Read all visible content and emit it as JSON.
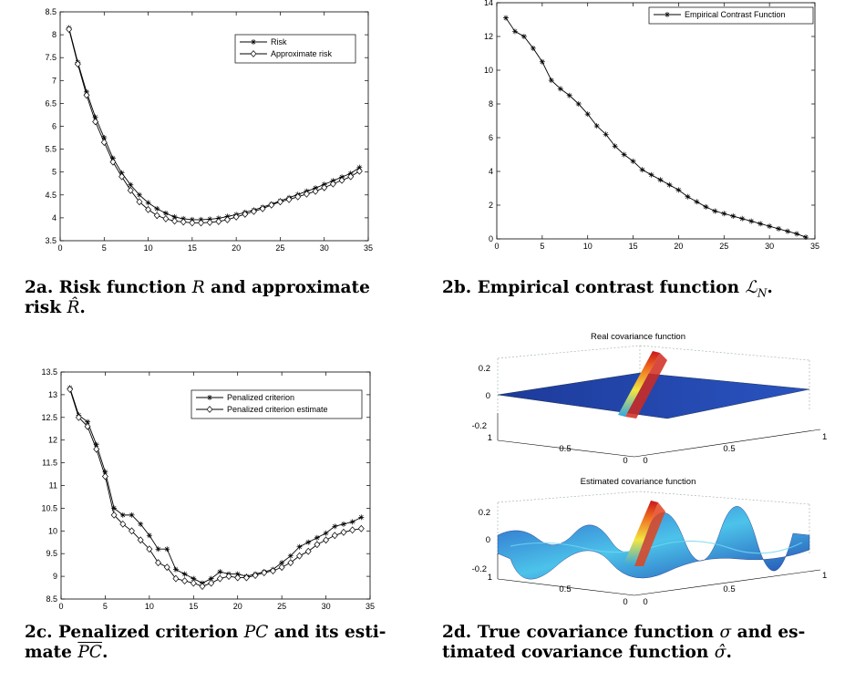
{
  "chart_data": [
    {
      "type": "line",
      "x": [
        1,
        2,
        3,
        4,
        5,
        6,
        7,
        8,
        9,
        10,
        11,
        12,
        13,
        14,
        15,
        16,
        17,
        18,
        19,
        20,
        21,
        22,
        23,
        24,
        25,
        26,
        27,
        28,
        29,
        30,
        31,
        32,
        33,
        34
      ],
      "series": [
        {
          "name": "Risk",
          "marker": "star",
          "values": [
            8.15,
            7.4,
            6.75,
            6.2,
            5.75,
            5.3,
            4.98,
            4.72,
            4.5,
            4.33,
            4.2,
            4.1,
            4.02,
            3.98,
            3.96,
            3.96,
            3.97,
            3.99,
            4.03,
            4.07,
            4.12,
            4.17,
            4.23,
            4.3,
            4.37,
            4.44,
            4.51,
            4.58,
            4.65,
            4.73,
            4.81,
            4.89,
            4.97,
            5.1
          ]
        },
        {
          "name": "Approximate risk",
          "marker": "diamond",
          "values": [
            8.12,
            7.36,
            6.68,
            6.1,
            5.65,
            5.22,
            4.9,
            4.6,
            4.35,
            4.18,
            4.05,
            3.98,
            3.93,
            3.91,
            3.89,
            3.89,
            3.9,
            3.92,
            3.96,
            4.02,
            4.08,
            4.14,
            4.2,
            4.28,
            4.35,
            4.4,
            4.46,
            4.52,
            4.58,
            4.66,
            4.74,
            4.82,
            4.9,
            5.02
          ]
        }
      ],
      "xlim": [
        0,
        35
      ],
      "ylim": [
        3.5,
        8.5
      ],
      "xticks": [
        0,
        5,
        10,
        15,
        20,
        25,
        30,
        35
      ],
      "yticks": [
        3.5,
        4,
        4.5,
        5,
        5.5,
        6,
        6.5,
        7,
        7.5,
        8,
        8.5
      ],
      "legend_position": "top-right"
    },
    {
      "type": "line",
      "x": [
        1,
        2,
        3,
        4,
        5,
        6,
        7,
        8,
        9,
        10,
        11,
        12,
        13,
        14,
        15,
        16,
        17,
        18,
        19,
        20,
        21,
        22,
        23,
        24,
        25,
        26,
        27,
        28,
        29,
        30,
        31,
        32,
        33,
        34
      ],
      "series": [
        {
          "name": "Empirical Contrast Function",
          "marker": "star",
          "values": [
            13.1,
            12.3,
            12.0,
            11.3,
            10.5,
            9.4,
            8.9,
            8.5,
            8.0,
            7.4,
            6.7,
            6.2,
            5.5,
            5.0,
            4.6,
            4.1,
            3.8,
            3.5,
            3.2,
            2.9,
            2.5,
            2.2,
            1.9,
            1.65,
            1.5,
            1.35,
            1.2,
            1.05,
            0.9,
            0.75,
            0.6,
            0.45,
            0.3,
            0.1
          ]
        }
      ],
      "xlim": [
        0,
        35
      ],
      "ylim": [
        0,
        14
      ],
      "xticks": [
        0,
        5,
        10,
        15,
        20,
        25,
        30,
        35
      ],
      "yticks": [
        0,
        2,
        4,
        6,
        8,
        10,
        12,
        14
      ],
      "legend_position": "top-right"
    },
    {
      "type": "line",
      "x": [
        1,
        2,
        3,
        4,
        5,
        6,
        7,
        8,
        9,
        10,
        11,
        12,
        13,
        14,
        15,
        16,
        17,
        18,
        19,
        20,
        21,
        22,
        23,
        24,
        25,
        26,
        27,
        28,
        29,
        30,
        31,
        32,
        33,
        34
      ],
      "series": [
        {
          "name": "Penalized criterion",
          "marker": "star",
          "values": [
            13.15,
            12.55,
            12.4,
            11.9,
            11.3,
            10.5,
            10.35,
            10.35,
            10.15,
            9.9,
            9.6,
            9.6,
            9.15,
            9.05,
            8.95,
            8.85,
            8.95,
            9.1,
            9.05,
            9.05,
            9.0,
            9.05,
            9.1,
            9.15,
            9.3,
            9.45,
            9.65,
            9.75,
            9.85,
            9.95,
            10.1,
            10.15,
            10.2,
            10.3
          ]
        },
        {
          "name": "Penalized criterion estimate",
          "marker": "diamond",
          "values": [
            13.12,
            12.5,
            12.3,
            11.8,
            11.2,
            10.35,
            10.15,
            10.0,
            9.8,
            9.6,
            9.3,
            9.2,
            8.95,
            8.9,
            8.85,
            8.78,
            8.85,
            8.95,
            9.0,
            8.97,
            8.97,
            9.02,
            9.08,
            9.12,
            9.2,
            9.3,
            9.45,
            9.55,
            9.7,
            9.8,
            9.9,
            9.97,
            10.02,
            10.05
          ]
        }
      ],
      "xlim": [
        0,
        35
      ],
      "ylim": [
        8.5,
        13.5
      ],
      "xticks": [
        0,
        5,
        10,
        15,
        20,
        25,
        30,
        35
      ],
      "yticks": [
        8.5,
        9,
        9.5,
        10,
        10.5,
        11,
        11.5,
        12,
        12.5,
        13,
        13.5
      ],
      "legend_position": "top-right"
    },
    {
      "type": "surface",
      "title": "Real covariance function",
      "zticks": [
        0.2,
        0,
        -0.2
      ],
      "yticks": [
        1,
        0.5,
        0
      ],
      "xticks": [
        0,
        0.5,
        1
      ]
    },
    {
      "type": "surface",
      "title": "Estimated covariance function",
      "zticks": [
        0.2,
        0,
        -0.2
      ],
      "yticks": [
        1,
        0.5,
        0
      ],
      "xticks": [
        0,
        0.5,
        1
      ]
    }
  ],
  "captions": {
    "c2a_line1": "2a. Risk function",
    "c2a_R": "R",
    "c2a_and": "and approximate",
    "c2a_line2": "risk",
    "c2a_Rhat": "R̂",
    "c2b_text": "2b. Empirical contrast function",
    "c2b_L": "ℒ",
    "c2b_N": "N",
    "c2c_line1": "2c. Penalized criterion",
    "c2c_PC": "PC",
    "c2c_rest": "and its esti-",
    "c2c_line2": "mate",
    "c2c_PChat": "PC",
    "c2d_line1": "2d. True covariance function",
    "c2d_sigma": "σ",
    "c2d_rest": "and es-",
    "c2d_line2": "timated covariance function",
    "c2d_sigmahat": "σ̂"
  },
  "colors": {
    "axis": "#000000",
    "line": "#000000",
    "surface_low": "#1f3f9f",
    "surface_mid": "#3bb5e8",
    "surface_high": "#e8401c"
  }
}
